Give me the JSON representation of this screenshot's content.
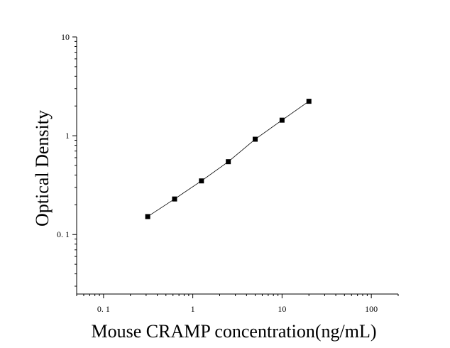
{
  "chart_data": {
    "type": "scatter",
    "title": "",
    "xlabel": "Mouse CRAMP concentration(ng/mL)",
    "ylabel": "Optical Density",
    "xscale": "log",
    "yscale": "log",
    "xlim": [
      0.05,
      200
    ],
    "ylim": [
      0.025,
      10
    ],
    "xticks": [
      {
        "value": 0.1,
        "label": "0. 1"
      },
      {
        "value": 1,
        "label": "1"
      },
      {
        "value": 10,
        "label": "10"
      },
      {
        "value": 100,
        "label": "100"
      }
    ],
    "yticks": [
      {
        "value": 0.1,
        "label": "0. 1"
      },
      {
        "value": 1,
        "label": "1"
      },
      {
        "value": 10,
        "label": "10"
      }
    ],
    "grid": false,
    "legend": "none",
    "series": [
      {
        "marker": "square",
        "color": "#000000",
        "fit_line": true,
        "x": [
          0.3125,
          0.625,
          1.25,
          2.5,
          5,
          10,
          20
        ],
        "y": [
          0.152,
          0.229,
          0.349,
          0.546,
          0.922,
          1.438,
          2.232
        ]
      }
    ]
  }
}
